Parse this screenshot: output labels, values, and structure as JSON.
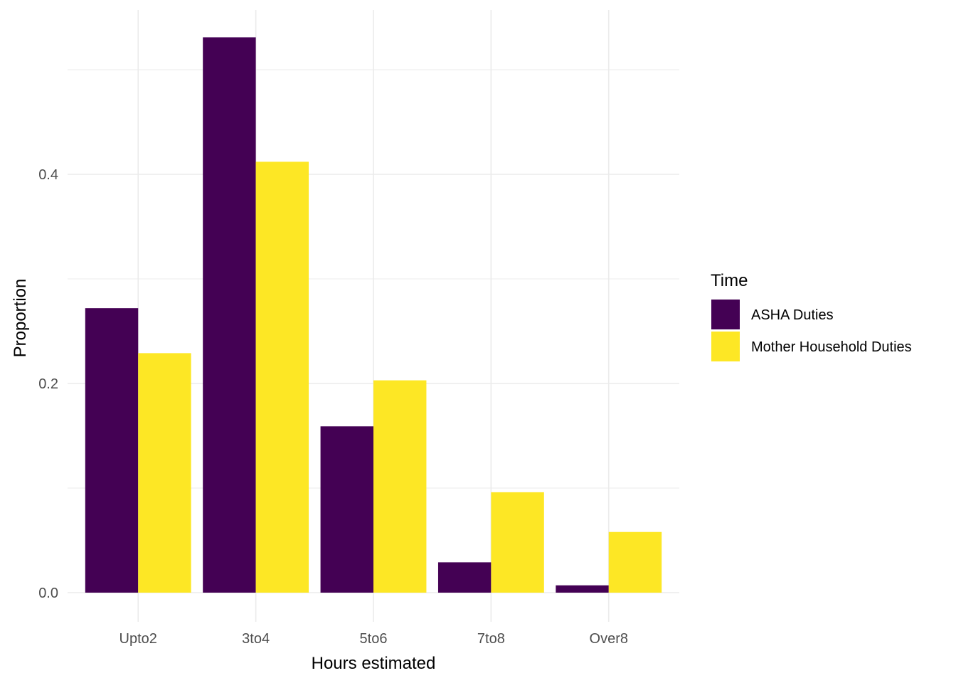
{
  "chart_data": {
    "type": "bar",
    "mode": "grouped-dodge",
    "title": "",
    "xlabel": "Hours estimated",
    "ylabel": "Proportion",
    "categories": [
      "Upto2",
      "3to4",
      "5to6",
      "7to8",
      "Over8"
    ],
    "series": [
      {
        "name": "ASHA Duties",
        "color": "#440154",
        "values": [
          0.272,
          0.531,
          0.159,
          0.029,
          0.007
        ]
      },
      {
        "name": "Mother Household Duties",
        "color": "#FDE725",
        "values": [
          0.229,
          0.412,
          0.203,
          0.096,
          0.058
        ]
      }
    ],
    "legend": {
      "title": "Time",
      "position": "right"
    },
    "y_axis": {
      "ticks": [
        {
          "label": "0.0",
          "value": 0.0
        },
        {
          "label": "0.2",
          "value": 0.2
        },
        {
          "label": "0.4",
          "value": 0.4
        }
      ],
      "minor_gridlines": [
        0.1,
        0.3,
        0.5
      ],
      "ylim": [
        0,
        0.56
      ]
    },
    "style": {
      "background": "#ffffff",
      "gridline_color": "#EBEBEB",
      "tick_label_color": "#4D4D4D",
      "axis_title_color": "#000000",
      "legend_text_color": "#000000"
    }
  }
}
